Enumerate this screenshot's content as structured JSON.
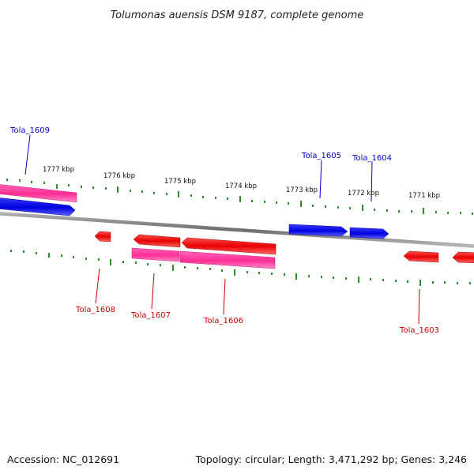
{
  "title": "Tolumonas auensis DSM 9187, complete genome",
  "footer": {
    "accession": "Accession: NC_012691",
    "summary": "Topology: circular; Length: 3,471,292 bp; Genes: 3,246"
  },
  "colors": {
    "forward_label": "#0000cc",
    "reverse_label": "#cc0000",
    "backbone": "#808080",
    "ticks": "#2e8b2e",
    "blue_gene": "#0a0ae6",
    "red_gene": "#ee0000",
    "pink_gene": "#ff3399"
  },
  "tick_labels": [
    "1777 kbp",
    "1776 kbp",
    "1775 kbp",
    "1774 kbp",
    "1773 kbp",
    "1772 kbp",
    "1771 kbp"
  ],
  "gene_labels": {
    "tola_1609": "Tola_1609",
    "tola_1605": "Tola_1605",
    "tola_1604": "Tola_1604",
    "tola_1608": "Tola_1608",
    "tola_1607": "Tola_1607",
    "tola_1606": "Tola_1606",
    "tola_1603": "Tola_1603"
  }
}
